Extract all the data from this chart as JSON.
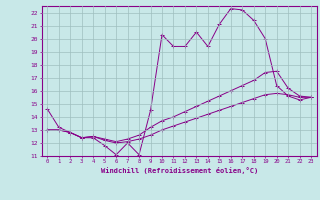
{
  "xlabel": "Windchill (Refroidissement éolien,°C)",
  "bg_color": "#c8e8e8",
  "grid_color": "#9fbfbf",
  "line_color": "#880088",
  "xlim": [
    -0.5,
    23.5
  ],
  "ylim": [
    11,
    22.5
  ],
  "xticks": [
    0,
    1,
    2,
    3,
    4,
    5,
    6,
    7,
    8,
    9,
    10,
    11,
    12,
    13,
    14,
    15,
    16,
    17,
    18,
    19,
    20,
    21,
    22,
    23
  ],
  "yticks": [
    11,
    12,
    13,
    14,
    15,
    16,
    17,
    18,
    19,
    20,
    21,
    22
  ],
  "line1_x": [
    0,
    1,
    2,
    3,
    4,
    5,
    6,
    7,
    8,
    9,
    10,
    11,
    12,
    13,
    14,
    15,
    16,
    17,
    18,
    19,
    20,
    21,
    22,
    23
  ],
  "line1_y": [
    14.6,
    13.2,
    12.8,
    12.4,
    12.4,
    11.8,
    11.1,
    12.0,
    11.1,
    14.5,
    20.3,
    19.4,
    19.4,
    20.5,
    19.4,
    21.1,
    22.3,
    22.2,
    21.4,
    20.0,
    16.4,
    15.6,
    15.3,
    15.5
  ],
  "line2_x": [
    0,
    1,
    2,
    3,
    4,
    5,
    6,
    7,
    8,
    9,
    10,
    11,
    12,
    13,
    14,
    15,
    16,
    17,
    18,
    19,
    20,
    21,
    22,
    23
  ],
  "line2_y": [
    13.0,
    13.0,
    12.8,
    12.4,
    12.5,
    12.3,
    12.1,
    12.3,
    12.6,
    13.2,
    13.7,
    14.0,
    14.4,
    14.8,
    15.2,
    15.6,
    16.0,
    16.4,
    16.8,
    17.4,
    17.5,
    16.2,
    15.6,
    15.5
  ],
  "line3_x": [
    0,
    1,
    2,
    3,
    4,
    5,
    6,
    7,
    8,
    9,
    10,
    11,
    12,
    13,
    14,
    15,
    16,
    17,
    18,
    19,
    20,
    21,
    22,
    23
  ],
  "line3_y": [
    13.0,
    13.0,
    12.8,
    12.4,
    12.5,
    12.2,
    12.0,
    12.1,
    12.3,
    12.6,
    13.0,
    13.3,
    13.6,
    13.9,
    14.2,
    14.5,
    14.8,
    15.1,
    15.4,
    15.7,
    15.8,
    15.7,
    15.5,
    15.5
  ]
}
